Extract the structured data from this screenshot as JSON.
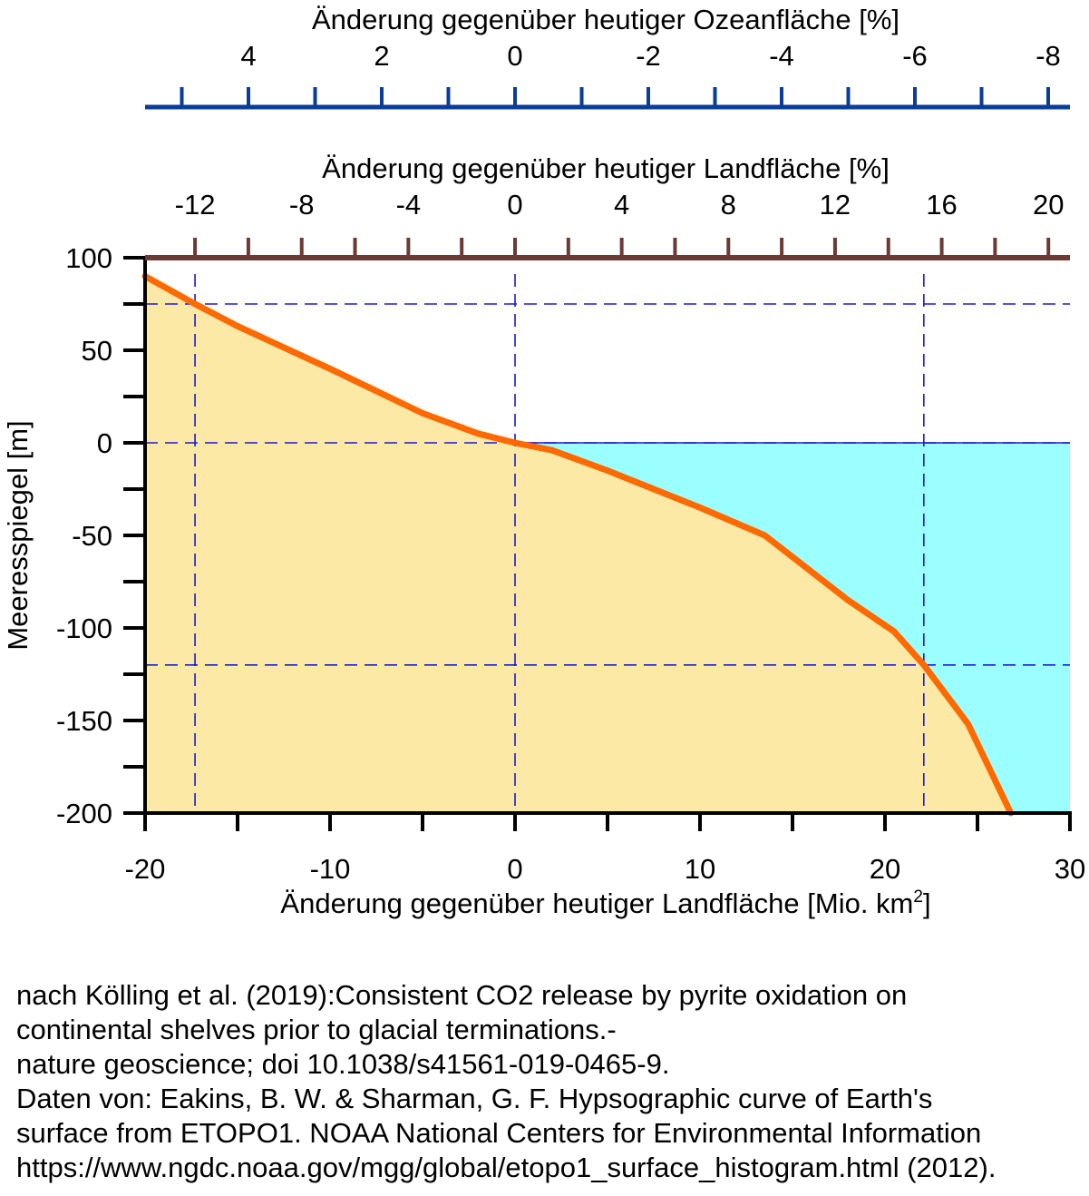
{
  "chart_data": {
    "type": "area",
    "xlabel": "Änderung gegenüber heutiger Landfläche [Mio. km",
    "xlabel_sup": "2",
    "xlabel_close": "]",
    "ylabel": "Meeresspiegel [m]",
    "xlim": [
      -20,
      30
    ],
    "ylim": [
      -200,
      100
    ],
    "x_ticks": [
      "-20",
      "-10",
      "0",
      "10",
      "20",
      "30"
    ],
    "y_ticks": [
      "100",
      "50",
      "0",
      "-50",
      "-100",
      "-150",
      "-200"
    ],
    "land_axis": {
      "label": "Änderung gegenüber heutiger Landfläche [%]",
      "ticks": [
        "-12",
        "-8",
        "-4",
        "0",
        "4",
        "8",
        "12",
        "16",
        "20"
      ],
      "color": "#6b3a33"
    },
    "ocean_axis": {
      "label": "Änderung gegenüber heutiger Ozeanfläche [%]",
      "ticks": [
        "4",
        "2",
        "0",
        "-2",
        "-4",
        "-6",
        "-8"
      ],
      "color": "#0a3d99"
    },
    "reference_lines": {
      "x": [
        -17.3,
        0,
        22.1
      ],
      "y": [
        75,
        0,
        -120
      ]
    },
    "series": [
      {
        "x": [
          -20,
          -17.3,
          -15,
          -10,
          -5,
          -2,
          0,
          2,
          5,
          10,
          13.5,
          18,
          20.5,
          22.1,
          23,
          24.5,
          26.8
        ],
        "y": [
          90,
          75,
          63,
          40,
          16,
          5,
          0,
          -4,
          -15,
          -35,
          -50,
          -85,
          -102,
          -120,
          -132,
          -152,
          -200
        ]
      }
    ],
    "colors": {
      "curve": "#ff6a00",
      "land_fill": "#fde9a6",
      "ocean_fill": "#9cffff",
      "reference": "#1a1ad0",
      "axis": "#000000"
    },
    "grid": false,
    "legend": "none"
  },
  "caption": {
    "lines": [
      "nach Kölling et al. (2019):Consistent CO2 release by pyrite oxidation on",
      "continental shelves prior to glacial terminations.-",
      "nature geoscience; doi 10.1038/s41561-019-0465-9.",
      "Daten von: Eakins, B. W. & Sharman, G. F. Hypsographic curve of Earth's",
      "surface from ETOPO1. NOAA National Centers for Environmental Information",
      "https://www.ngdc.noaa.gov/mgg/global/etopo1_surface_histogram.html (2012)."
    ]
  }
}
